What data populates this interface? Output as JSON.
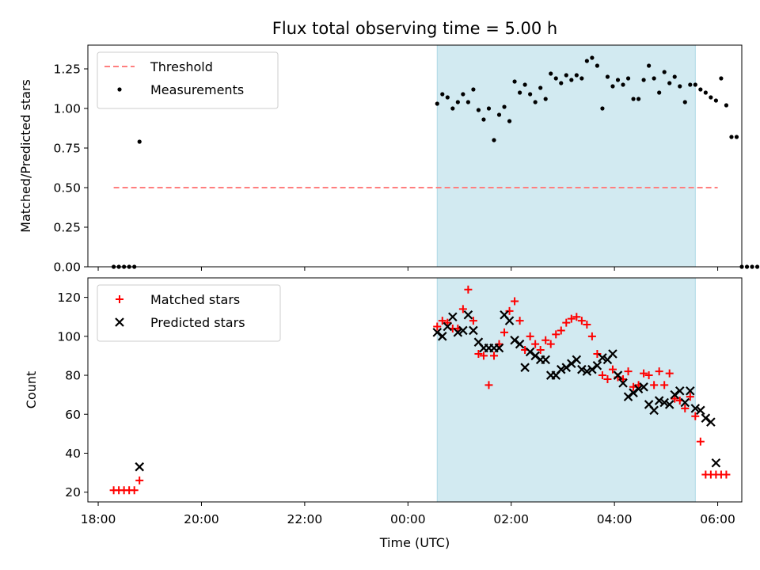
{
  "chart_data": [
    {
      "type": "scatter",
      "title": "Flux total observing time = 5.00 h",
      "xlabel": "",
      "ylabel": "Matched/Predicted stars",
      "xlim": [
        "17:48",
        "06:28"
      ],
      "ylim": [
        0,
        1.4
      ],
      "yticks": [
        "0.00",
        "0.25",
        "0.50",
        "0.75",
        "1.00",
        "1.25"
      ],
      "grid": false,
      "legend_position": "upper-left",
      "observing_window": {
        "start": "00:34",
        "end": "05:34",
        "color": "#add8e6"
      },
      "threshold": {
        "name": "Threshold",
        "value": 0.5,
        "x_start": "18:18",
        "x_end": "06:00",
        "color": "#ff7f7f",
        "style": "dashed"
      },
      "series": [
        {
          "name": "Measurements",
          "color": "#000000",
          "marker": "dot",
          "points": [
            [
              "18:18",
              0.0
            ],
            [
              "18:24",
              0.0
            ],
            [
              "18:30",
              0.0
            ],
            [
              "18:36",
              0.0
            ],
            [
              "18:42",
              0.0
            ],
            [
              "18:48",
              0.79
            ],
            [
              "00:34",
              1.03
            ],
            [
              "00:40",
              1.09
            ],
            [
              "00:46",
              1.07
            ],
            [
              "00:52",
              1.0
            ],
            [
              "00:58",
              1.04
            ],
            [
              "01:04",
              1.09
            ],
            [
              "01:10",
              1.04
            ],
            [
              "01:16",
              1.12
            ],
            [
              "01:22",
              0.99
            ],
            [
              "01:28",
              0.93
            ],
            [
              "01:34",
              1.0
            ],
            [
              "01:40",
              0.8
            ],
            [
              "01:46",
              0.96
            ],
            [
              "01:52",
              1.01
            ],
            [
              "01:58",
              0.92
            ],
            [
              "02:04",
              1.17
            ],
            [
              "02:10",
              1.1
            ],
            [
              "02:16",
              1.15
            ],
            [
              "02:22",
              1.09
            ],
            [
              "02:28",
              1.04
            ],
            [
              "02:34",
              1.13
            ],
            [
              "02:40",
              1.06
            ],
            [
              "02:46",
              1.22
            ],
            [
              "02:52",
              1.19
            ],
            [
              "02:58",
              1.16
            ],
            [
              "03:04",
              1.21
            ],
            [
              "03:10",
              1.18
            ],
            [
              "03:16",
              1.21
            ],
            [
              "03:22",
              1.19
            ],
            [
              "03:28",
              1.3
            ],
            [
              "03:34",
              1.32
            ],
            [
              "03:40",
              1.27
            ],
            [
              "03:46",
              1.0
            ],
            [
              "03:52",
              1.2
            ],
            [
              "03:58",
              1.14
            ],
            [
              "04:04",
              1.18
            ],
            [
              "04:10",
              1.15
            ],
            [
              "04:16",
              1.19
            ],
            [
              "04:22",
              1.06
            ],
            [
              "04:28",
              1.06
            ],
            [
              "04:34",
              1.18
            ],
            [
              "04:40",
              1.27
            ],
            [
              "04:46",
              1.19
            ],
            [
              "04:52",
              1.1
            ],
            [
              "04:58",
              1.23
            ],
            [
              "05:04",
              1.16
            ],
            [
              "05:10",
              1.2
            ],
            [
              "05:16",
              1.14
            ],
            [
              "05:22",
              1.04
            ],
            [
              "05:28",
              1.15
            ],
            [
              "05:34",
              1.15
            ],
            [
              "05:40",
              1.12
            ],
            [
              "05:46",
              1.1
            ],
            [
              "05:52",
              1.07
            ],
            [
              "05:58",
              1.05
            ],
            [
              "06:04",
              1.19
            ],
            [
              "06:10",
              1.02
            ],
            [
              "06:16",
              0.82
            ],
            [
              "06:22",
              0.82
            ],
            [
              "06:28",
              0.0
            ],
            [
              "06:34",
              0.0
            ],
            [
              "06:40",
              0.0
            ],
            [
              "06:46",
              0.0
            ]
          ]
        }
      ]
    },
    {
      "type": "scatter",
      "title": "",
      "xlabel": "Time (UTC)",
      "ylabel": "Count",
      "xlim": [
        "17:48",
        "06:28"
      ],
      "ylim": [
        15,
        130
      ],
      "yticks": [
        "20",
        "40",
        "60",
        "80",
        "100",
        "120"
      ],
      "xticks": [
        "18:00",
        "20:00",
        "22:00",
        "00:00",
        "02:00",
        "04:00",
        "06:00"
      ],
      "grid": false,
      "legend_position": "upper-left",
      "observing_window": {
        "start": "00:34",
        "end": "05:34",
        "color": "#add8e6"
      },
      "series": [
        {
          "name": "Matched stars",
          "color": "#ff0000",
          "marker": "plus",
          "points": [
            [
              "18:18",
              21
            ],
            [
              "18:24",
              21
            ],
            [
              "18:30",
              21
            ],
            [
              "18:36",
              21
            ],
            [
              "18:42",
              21
            ],
            [
              "18:48",
              26
            ],
            [
              "00:34",
              105
            ],
            [
              "00:40",
              108
            ],
            [
              "00:46",
              107
            ],
            [
              "00:52",
              104
            ],
            [
              "00:58",
              104
            ],
            [
              "01:04",
              114
            ],
            [
              "01:10",
              124
            ],
            [
              "01:16",
              108
            ],
            [
              "01:22",
              91
            ],
            [
              "01:28",
              90
            ],
            [
              "01:34",
              75
            ],
            [
              "01:40",
              90
            ],
            [
              "01:46",
              96
            ],
            [
              "01:52",
              102
            ],
            [
              "01:58",
              113
            ],
            [
              "02:04",
              118
            ],
            [
              "02:10",
              108
            ],
            [
              "02:16",
              93
            ],
            [
              "02:22",
              100
            ],
            [
              "02:28",
              96
            ],
            [
              "02:34",
              93
            ],
            [
              "02:40",
              98
            ],
            [
              "02:46",
              96
            ],
            [
              "02:52",
              101
            ],
            [
              "02:58",
              103
            ],
            [
              "03:04",
              107
            ],
            [
              "03:10",
              109
            ],
            [
              "03:16",
              110
            ],
            [
              "03:22",
              108
            ],
            [
              "03:28",
              106
            ],
            [
              "03:34",
              100
            ],
            [
              "03:40",
              91
            ],
            [
              "03:46",
              80
            ],
            [
              "03:52",
              78
            ],
            [
              "03:58",
              83
            ],
            [
              "04:04",
              79
            ],
            [
              "04:10",
              78
            ],
            [
              "04:16",
              82
            ],
            [
              "04:22",
              74
            ],
            [
              "04:28",
              75
            ],
            [
              "04:34",
              81
            ],
            [
              "04:40",
              80
            ],
            [
              "04:46",
              75
            ],
            [
              "04:52",
              82
            ],
            [
              "04:58",
              75
            ],
            [
              "05:04",
              81
            ],
            [
              "05:10",
              68
            ],
            [
              "05:16",
              67
            ],
            [
              "05:22",
              63
            ],
            [
              "05:28",
              69
            ],
            [
              "05:34",
              59
            ],
            [
              "05:40",
              46
            ],
            [
              "05:46",
              29
            ],
            [
              "05:52",
              29
            ],
            [
              "05:58",
              29
            ],
            [
              "06:04",
              29
            ],
            [
              "06:10",
              29
            ]
          ]
        },
        {
          "name": "Predicted stars",
          "color": "#000000",
          "marker": "x",
          "points": [
            [
              "18:48",
              33
            ],
            [
              "00:34",
              102
            ],
            [
              "00:40",
              100
            ],
            [
              "00:46",
              105
            ],
            [
              "00:52",
              110
            ],
            [
              "00:58",
              102
            ],
            [
              "01:04",
              103
            ],
            [
              "01:10",
              111
            ],
            [
              "01:16",
              103
            ],
            [
              "01:22",
              97
            ],
            [
              "01:28",
              94
            ],
            [
              "01:34",
              94
            ],
            [
              "01:40",
              94
            ],
            [
              "01:46",
              94
            ],
            [
              "01:52",
              111
            ],
            [
              "01:58",
              108
            ],
            [
              "02:04",
              98
            ],
            [
              "02:10",
              96
            ],
            [
              "02:16",
              84
            ],
            [
              "02:22",
              92
            ],
            [
              "02:28",
              90
            ],
            [
              "02:34",
              88
            ],
            [
              "02:40",
              88
            ],
            [
              "02:46",
              80
            ],
            [
              "02:52",
              80
            ],
            [
              "02:58",
              83
            ],
            [
              "03:04",
              84
            ],
            [
              "03:10",
              86
            ],
            [
              "03:16",
              88
            ],
            [
              "03:22",
              83
            ],
            [
              "03:28",
              82
            ],
            [
              "03:34",
              83
            ],
            [
              "03:40",
              85
            ],
            [
              "03:46",
              89
            ],
            [
              "03:52",
              88
            ],
            [
              "03:58",
              91
            ],
            [
              "04:04",
              80
            ],
            [
              "04:10",
              76
            ],
            [
              "04:16",
              69
            ],
            [
              "04:22",
              71
            ],
            [
              "04:28",
              73
            ],
            [
              "04:34",
              74
            ],
            [
              "04:40",
              65
            ],
            [
              "04:46",
              62
            ],
            [
              "04:52",
              67
            ],
            [
              "04:58",
              66
            ],
            [
              "05:04",
              65
            ],
            [
              "05:10",
              70
            ],
            [
              "05:16",
              72
            ],
            [
              "05:22",
              66
            ],
            [
              "05:28",
              72
            ],
            [
              "05:34",
              63
            ],
            [
              "05:40",
              62
            ],
            [
              "05:46",
              58
            ],
            [
              "05:52",
              56
            ],
            [
              "05:58",
              35
            ]
          ]
        }
      ]
    }
  ]
}
